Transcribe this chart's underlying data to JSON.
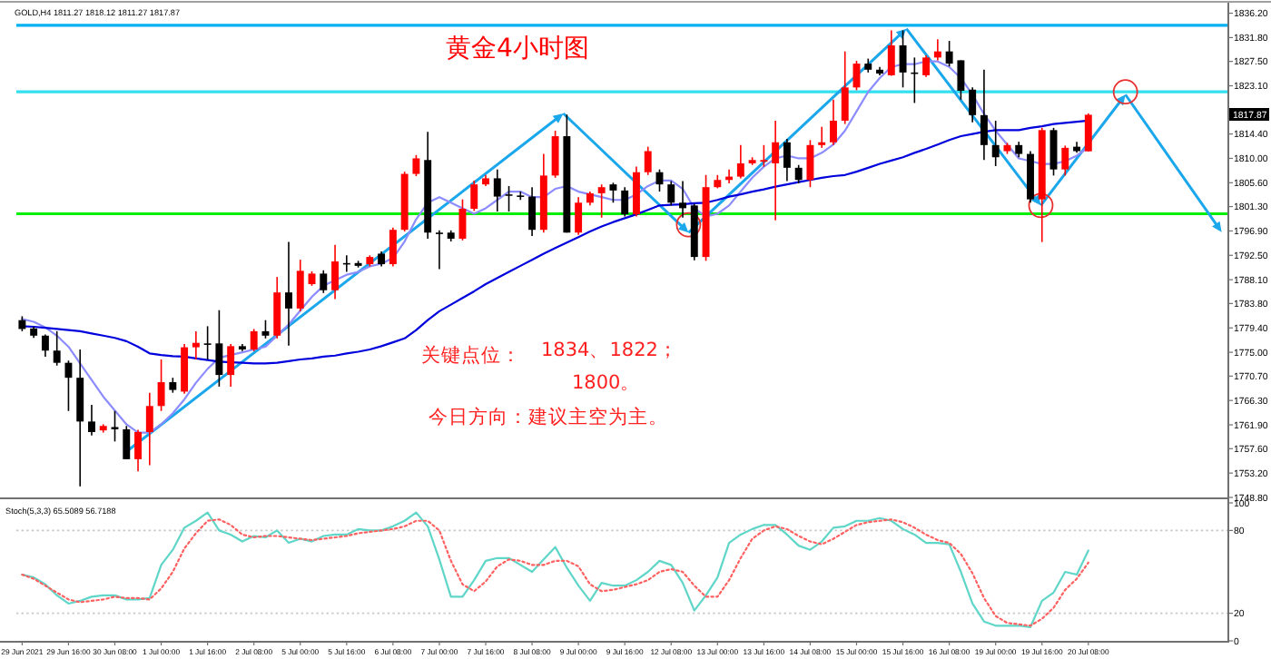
{
  "chart_data": [
    {
      "type": "candlestick",
      "title": "黄金4小时图",
      "subtitle": "GOLD,H4 1811.27 1818.12 1811.27 1817.87",
      "categories": [
        null,
        null,
        null,
        null,
        null,
        null,
        null,
        null,
        null,
        null,
        null,
        null,
        null,
        null,
        null,
        null,
        null,
        null,
        null,
        null,
        null,
        null,
        null,
        null,
        null,
        null,
        null,
        null,
        null,
        null,
        null,
        null,
        null,
        null,
        null,
        null,
        null,
        null,
        null,
        null,
        null,
        null,
        null,
        null,
        null,
        null,
        null,
        null,
        null,
        null,
        null,
        null,
        null,
        null,
        null,
        null,
        null,
        null,
        null,
        null,
        null,
        null,
        null,
        null,
        null,
        null,
        null,
        null,
        null,
        null,
        null,
        null,
        null,
        null,
        null,
        null,
        null,
        null,
        null,
        null,
        null,
        null,
        null,
        null,
        null,
        null,
        null,
        null,
        null,
        null,
        null,
        null,
        null
      ],
      "ohlc": [
        [
          1780.8,
          1781.5,
          1778.8,
          1779.2
        ],
        [
          1779.3,
          1779.6,
          1777.6,
          1778.0
        ],
        [
          1778.0,
          1778.2,
          1774.2,
          1775.3
        ],
        [
          1775.3,
          1778.8,
          1772.6,
          1773.1
        ],
        [
          1773.1,
          1773.5,
          1764.4,
          1770.4
        ],
        [
          1770.4,
          1775.5,
          1750.8,
          1762.5
        ],
        [
          1762.5,
          1765.5,
          1760.0,
          1760.6
        ],
        [
          1760.9,
          1762.0,
          1760.5,
          1761.7
        ],
        [
          1761.5,
          1764.4,
          1758.9,
          1761.1
        ],
        [
          1761.1,
          1761.7,
          1755.7,
          1755.7
        ],
        [
          1755.7,
          1761.0,
          1753.5,
          1760.6
        ],
        [
          1760.6,
          1767.7,
          1754.6,
          1765.3
        ],
        [
          1765.3,
          1773.7,
          1764.4,
          1769.6
        ],
        [
          1769.6,
          1770.4,
          1767.7,
          1768.2
        ],
        [
          1767.9,
          1776.5,
          1767.5,
          1775.9
        ],
        [
          1775.9,
          1778.8,
          1773.7,
          1776.7
        ],
        [
          1776.6,
          1779.7,
          1773.7,
          1776.5
        ],
        [
          1776.6,
          1782.6,
          1768.8,
          1770.9
        ],
        [
          1770.9,
          1776.5,
          1768.8,
          1776.1
        ],
        [
          1776.1,
          1776.5,
          1775.2,
          1775.5
        ],
        [
          1775.5,
          1779.2,
          1775.2,
          1778.8
        ],
        [
          1778.8,
          1780.8,
          1777.5,
          1778.0
        ],
        [
          1778.0,
          1788.6,
          1777.5,
          1785.8
        ],
        [
          1785.8,
          1794.9,
          1776.2,
          1782.9
        ],
        [
          1782.9,
          1791.7,
          1782.4,
          1789.7
        ],
        [
          1787.3,
          1789.6,
          1787.0,
          1789.2
        ],
        [
          1789.2,
          1789.8,
          1785.7,
          1786.2
        ],
        [
          1786.2,
          1794.4,
          1784.6,
          1791.4
        ],
        [
          1791.1,
          1792.5,
          1789.5,
          1791.0
        ],
        [
          1791.1,
          1791.5,
          1790.3,
          1790.6
        ],
        [
          1790.9,
          1792.5,
          1790.5,
          1792.2
        ],
        [
          1792.8,
          1793.2,
          1790.5,
          1790.9
        ],
        [
          1790.9,
          1797.5,
          1790.5,
          1797.1
        ],
        [
          1797.1,
          1807.6,
          1796.8,
          1807.2
        ],
        [
          1807.2,
          1810.6,
          1806.8,
          1810.0
        ],
        [
          1809.7,
          1814.8,
          1795.5,
          1796.6
        ],
        [
          1796.6,
          1797.0,
          1790.0,
          1796.4
        ],
        [
          1796.6,
          1797.0,
          1795.0,
          1795.5
        ],
        [
          1795.5,
          1802.6,
          1795.2,
          1800.9
        ],
        [
          1800.9,
          1806.0,
          1800.5,
          1805.3
        ],
        [
          1805.3,
          1807.0,
          1805.0,
          1806.4
        ],
        [
          1806.4,
          1808.0,
          1800.4,
          1803.1
        ],
        [
          1803.5,
          1805.0,
          1800.4,
          1803.3
        ],
        [
          1803.3,
          1804.0,
          1802.5,
          1803.1
        ],
        [
          1803.1,
          1804.8,
          1796.0,
          1797.1
        ],
        [
          1797.1,
          1810.8,
          1796.6,
          1806.9
        ],
        [
          1806.9,
          1815.0,
          1806.5,
          1814.0
        ],
        [
          1814.0,
          1817.9,
          1796.6,
          1796.6
        ],
        [
          1796.6,
          1803.0,
          1796.2,
          1802.0
        ],
        [
          1802.0,
          1804.0,
          1801.5,
          1803.7
        ],
        [
          1803.7,
          1805.3,
          1799.3,
          1804.8
        ],
        [
          1805.3,
          1805.6,
          1802.0,
          1804.2
        ],
        [
          1804.2,
          1804.8,
          1799.5,
          1799.9
        ],
        [
          1799.9,
          1808.5,
          1799.5,
          1807.5
        ],
        [
          1807.5,
          1812.1,
          1807.0,
          1811.3
        ],
        [
          1807.5,
          1808.0,
          1804.0,
          1805.3
        ],
        [
          1805.3,
          1805.9,
          1801.5,
          1802.0
        ],
        [
          1802.0,
          1805.9,
          1799.3,
          1801.0
        ],
        [
          1801.5,
          1801.8,
          1791.6,
          1792.2
        ],
        [
          1792.2,
          1807.0,
          1791.5,
          1804.8
        ],
        [
          1804.8,
          1807.0,
          1804.6,
          1806.1
        ],
        [
          1806.1,
          1808.0,
          1805.5,
          1806.7
        ],
        [
          1806.7,
          1812.4,
          1806.4,
          1809.1
        ],
        [
          1809.1,
          1810.2,
          1808.8,
          1809.7
        ],
        [
          1809.4,
          1812.4,
          1808.5,
          1809.7
        ],
        [
          1809.1,
          1816.8,
          1798.8,
          1812.9
        ],
        [
          1812.9,
          1813.5,
          1805.9,
          1808.3
        ],
        [
          1808.3,
          1808.8,
          1805.5,
          1806.1
        ],
        [
          1806.1,
          1813.3,
          1804.8,
          1812.4
        ],
        [
          1812.4,
          1815.7,
          1811.9,
          1812.9
        ],
        [
          1812.9,
          1820.6,
          1812.4,
          1816.8
        ],
        [
          1816.8,
          1829.3,
          1816.2,
          1822.8
        ],
        [
          1822.8,
          1827.6,
          1822.3,
          1827.1
        ],
        [
          1827.1,
          1828.0,
          1825.5,
          1826.0
        ],
        [
          1826.0,
          1826.5,
          1825.0,
          1825.3
        ],
        [
          1825.0,
          1833.1,
          1824.9,
          1830.4
        ],
        [
          1830.4,
          1833.1,
          1822.8,
          1825.5
        ],
        [
          1825.5,
          1828.2,
          1820.0,
          1825.3
        ],
        [
          1825.0,
          1828.6,
          1824.7,
          1828.2
        ],
        [
          1828.2,
          1831.5,
          1827.7,
          1829.3
        ],
        [
          1829.3,
          1831.2,
          1826.6,
          1827.1
        ],
        [
          1827.7,
          1827.7,
          1820.6,
          1822.2
        ],
        [
          1822.4,
          1822.8,
          1816.5,
          1817.8
        ],
        [
          1817.8,
          1826.0,
          1809.7,
          1812.4
        ],
        [
          1812.4,
          1816.8,
          1808.6,
          1810.2
        ],
        [
          1811.3,
          1812.8,
          1810.8,
          1812.4
        ],
        [
          1812.4,
          1813.0,
          1810.2,
          1810.8
        ],
        [
          1810.8,
          1811.3,
          1802.0,
          1802.6
        ],
        [
          1802.6,
          1815.5,
          1794.9,
          1815.1
        ],
        [
          1815.1,
          1815.5,
          1806.9,
          1808.0
        ],
        [
          1808.0,
          1812.3,
          1806.9,
          1811.9
        ],
        [
          1812.1,
          1813.0,
          1811.0,
          1811.3
        ],
        [
          1811.27,
          1818.12,
          1811.27,
          1817.87
        ]
      ],
      "colors": [
        "#000000",
        "#000000",
        "#000000",
        "#000000",
        "#000000",
        "#000000",
        "#000000",
        "#ff0000",
        "#000000",
        "#000000",
        "#ff0000",
        "#ff0000",
        "#ff0000",
        "#000000",
        "#ff0000",
        "#ff0000",
        "#000000",
        "#000000",
        "#ff0000",
        "#000000",
        "#ff0000",
        "#000000",
        "#ff0000",
        "#000000",
        "#ff0000",
        "#ff0000",
        "#000000",
        "#ff0000",
        "#000000",
        "#000000",
        "#ff0000",
        "#000000",
        "#ff0000",
        "#ff0000",
        "#ff0000",
        "#000000",
        "#000000",
        "#000000",
        "#ff0000",
        "#ff0000",
        "#ff0000",
        "#000000",
        "#000000",
        "#000000",
        "#000000",
        "#ff0000",
        "#ff0000",
        "#000000",
        "#ff0000",
        "#ff0000",
        "#ff0000",
        "#000000",
        "#000000",
        "#ff0000",
        "#ff0000",
        "#000000",
        "#000000",
        "#000000",
        "#000000",
        "#ff0000",
        "#ff0000",
        "#ff0000",
        "#ff0000",
        "#ff0000",
        "#ff0000",
        "#ff0000",
        "#000000",
        "#000000",
        "#ff0000",
        "#ff0000",
        "#ff0000",
        "#ff0000",
        "#ff0000",
        "#000000",
        "#000000",
        "#ff0000",
        "#000000",
        "#000000",
        "#ff0000",
        "#ff0000",
        "#000000",
        "#000000",
        "#000000",
        "#000000",
        "#000000",
        "#ff0000",
        "#000000",
        "#000000",
        "#ff0000",
        "#000000",
        "#ff0000",
        "#000000",
        "#ff0000"
      ],
      "series": [
        {
          "type": "line",
          "color": "#8c8cff",
          "values": [
            1781,
            1780.5,
            1779.5,
            1778,
            1776,
            1773,
            1770,
            1767,
            1764.5,
            1762,
            1760.5,
            1760.5,
            1762,
            1764,
            1766.5,
            1769.5,
            1772,
            1774,
            1774.5,
            1775,
            1775.5,
            1776,
            1778,
            1780,
            1782.5,
            1785,
            1787,
            1788,
            1789,
            1789.5,
            1790.5,
            1791,
            1792,
            1795,
            1799,
            1802,
            1803,
            1802,
            1801,
            1800,
            1801,
            1802.5,
            1804,
            1804,
            1803,
            1803,
            1804.5,
            1805,
            1804,
            1803.5,
            1803,
            1802.5,
            1802.5,
            1803.5,
            1805,
            1806,
            1806,
            1804.5,
            1801,
            1799.5,
            1800,
            1801.5,
            1804,
            1806.5,
            1808.5,
            1810,
            1810.5,
            1810,
            1810,
            1811,
            1812.5,
            1815,
            1818.5,
            1822,
            1824.5,
            1826.5,
            1827,
            1827,
            1827.5,
            1827.5,
            1826.5,
            1824.5,
            1821.5,
            1818,
            1815,
            1812.5,
            1810,
            1809.5,
            1809,
            1809,
            1809.5,
            1810.5,
            1812
          ]
        },
        {
          "type": "line",
          "color": "#0000dd",
          "values": [
            1779.7,
            1779.6,
            1779.4,
            1779.2,
            1779.0,
            1778.8,
            1778.4,
            1778.0,
            1777.6,
            1777.0,
            1776.0,
            1774.8,
            1774.5,
            1774.3,
            1774.2,
            1773.9,
            1773.6,
            1773.3,
            1773.2,
            1773.1,
            1773.0,
            1773.0,
            1773.1,
            1773.4,
            1773.7,
            1773.9,
            1774.2,
            1774.4,
            1774.8,
            1775.1,
            1775.5,
            1776.1,
            1776.8,
            1777.5,
            1779.0,
            1780.8,
            1782.4,
            1783.6,
            1784.8,
            1786.0,
            1787.3,
            1788.4,
            1789.5,
            1790.6,
            1791.7,
            1792.8,
            1793.8,
            1794.8,
            1795.8,
            1796.8,
            1797.7,
            1798.5,
            1799.2,
            1799.9,
            1800.7,
            1801.5,
            1801.6,
            1801.7,
            1801.9,
            1802.0,
            1802.5,
            1803.1,
            1803.5,
            1804.0,
            1804.4,
            1804.9,
            1805.3,
            1805.7,
            1806.1,
            1806.5,
            1806.8,
            1807.0,
            1807.6,
            1808.3,
            1809.0,
            1809.6,
            1810.2,
            1811.0,
            1811.7,
            1812.5,
            1813.3,
            1814.0,
            1814.4,
            1814.8,
            1815.1,
            1815.1,
            1815.1,
            1815.5,
            1815.8,
            1816.2,
            1816.4,
            1816.6,
            1816.8
          ]
        }
      ],
      "ylim": [
        1748.8,
        1837.6
      ],
      "yticks": [
        {
          "value": 1836.2,
          "label": "1836.20"
        },
        {
          "value": 1831.8,
          "label": "1831.80"
        },
        {
          "value": 1827.5,
          "label": "1827.50"
        },
        {
          "value": 1823.1,
          "label": "1823.10"
        },
        {
          "value": 1814.4,
          "label": "1814.40"
        },
        {
          "value": 1810.0,
          "label": "1810.00"
        },
        {
          "value": 1805.6,
          "label": "1805.60"
        },
        {
          "value": 1801.3,
          "label": "1801.30"
        },
        {
          "value": 1796.9,
          "label": "1796.90"
        },
        {
          "value": 1792.5,
          "label": "1792.50"
        },
        {
          "value": 1788.1,
          "label": "1788.10"
        },
        {
          "value": 1783.8,
          "label": "1783.80"
        },
        {
          "value": 1779.4,
          "label": "1779.40"
        },
        {
          "value": 1775.0,
          "label": "1775.00"
        },
        {
          "value": 1770.7,
          "label": "1770.70"
        },
        {
          "value": 1766.3,
          "label": "1766.30"
        },
        {
          "value": 1761.9,
          "label": "1761.90"
        },
        {
          "value": 1757.6,
          "label": "1757.60"
        },
        {
          "value": 1753.2,
          "label": "1753.20"
        },
        {
          "value": 1748.8,
          "label": "1748.80"
        }
      ],
      "tick_labels": "y",
      "ref_lines": [
        {
          "axis": "y",
          "value": 1834,
          "color": "#00b0f0"
        },
        {
          "axis": "y",
          "value": 1822,
          "color": "#33e0f0"
        },
        {
          "axis": "y",
          "value": 1800,
          "color": "#00ee00"
        }
      ],
      "annotations": [
        "关键点位：",
        "1834、1822；",
        "1800。",
        "今日方向：建议主空为主。",
        "1817.87"
      ]
    },
    {
      "type": "line",
      "title": "Stoch(5,3,3) 65.5089 56.7188",
      "categories": [
        "29 Jun 2021",
        null,
        null,
        null,
        "29 Jun 16:00",
        null,
        null,
        null,
        "30 Jun 08:00",
        null,
        null,
        null,
        "1 Jul 00:00",
        null,
        null,
        null,
        "1 Jul 16:00",
        null,
        null,
        null,
        "2 Jul 08:00",
        null,
        null,
        null,
        "5 Jul 00:00",
        null,
        null,
        null,
        "5 Jul 16:00",
        null,
        null,
        null,
        "6 Jul 08:00",
        null,
        null,
        null,
        "7 Jul 00:00",
        null,
        null,
        null,
        "7 Jul 16:00",
        null,
        null,
        null,
        "8 Jul 08:00",
        null,
        null,
        null,
        "9 Jul 00:00",
        null,
        null,
        null,
        "9 Jul 16:00",
        null,
        null,
        null,
        "12 Jul 08:00",
        null,
        null,
        null,
        "13 Jul 00:00",
        null,
        null,
        null,
        "13 Jul 16:00",
        null,
        null,
        null,
        "14 Jul 08:00",
        null,
        null,
        null,
        "15 Jul 00:00",
        null,
        null,
        null,
        "15 Jul 16:00",
        null,
        null,
        null,
        "16 Jul 08:00",
        null,
        null,
        null,
        "19 Jul 00:00",
        null,
        null,
        null,
        "19 Jul 16:00",
        null,
        null,
        null,
        "20 Jul 08:00"
      ],
      "series": [
        {
          "color": "#5fd6c8",
          "values": [
            48,
            46,
            41,
            33,
            27,
            29,
            32,
            33,
            33,
            30,
            30,
            31,
            55,
            66,
            82,
            87,
            93,
            80,
            77,
            72,
            76,
            75,
            80,
            71,
            74,
            72,
            76,
            77,
            77,
            81,
            80,
            80,
            83,
            87,
            93,
            83,
            59,
            32,
            32,
            44,
            58,
            60,
            60,
            55,
            50,
            59,
            68,
            53,
            40,
            29,
            42,
            40,
            40,
            44,
            50,
            58,
            55,
            42,
            22,
            33,
            46,
            71,
            77,
            81,
            84,
            84,
            77,
            69,
            66,
            72,
            82,
            83,
            87,
            87,
            89,
            87,
            81,
            77,
            71,
            71,
            70,
            50,
            27,
            14,
            11,
            11,
            11,
            10,
            29,
            35,
            50,
            48,
            65.5089
          ]
        },
        {
          "color": "#ff6060",
          "line_style": "dotted",
          "values": [
            48,
            45,
            40,
            35,
            30,
            28,
            29,
            30,
            32,
            31,
            31,
            30,
            38,
            50,
            67,
            78,
            87,
            88,
            84,
            77,
            75,
            76,
            76,
            75,
            74,
            73,
            74,
            75,
            76,
            78,
            79,
            80,
            81,
            83,
            87,
            87,
            80,
            58,
            41,
            36,
            43,
            54,
            59,
            58,
            55,
            55,
            58,
            58,
            54,
            41,
            36,
            37,
            39,
            41,
            44,
            50,
            52,
            50,
            40,
            32,
            32,
            44,
            60,
            74,
            80,
            83,
            81,
            76,
            72,
            70,
            74,
            79,
            84,
            86,
            87,
            88,
            86,
            82,
            77,
            73,
            71,
            63,
            49,
            31,
            18,
            13,
            12,
            11,
            16,
            24,
            37,
            45,
            56.7188
          ]
        }
      ],
      "ylim": [
        0,
        100
      ],
      "yticks": [
        0,
        20,
        80,
        100
      ],
      "ref_lines": [
        {
          "axis": "y",
          "value": 80,
          "color": "#c8c8c8",
          "line_style": "dotted"
        },
        {
          "axis": "y",
          "value": 20,
          "color": "#c8c8c8",
          "line_style": "dotted"
        }
      ]
    }
  ]
}
